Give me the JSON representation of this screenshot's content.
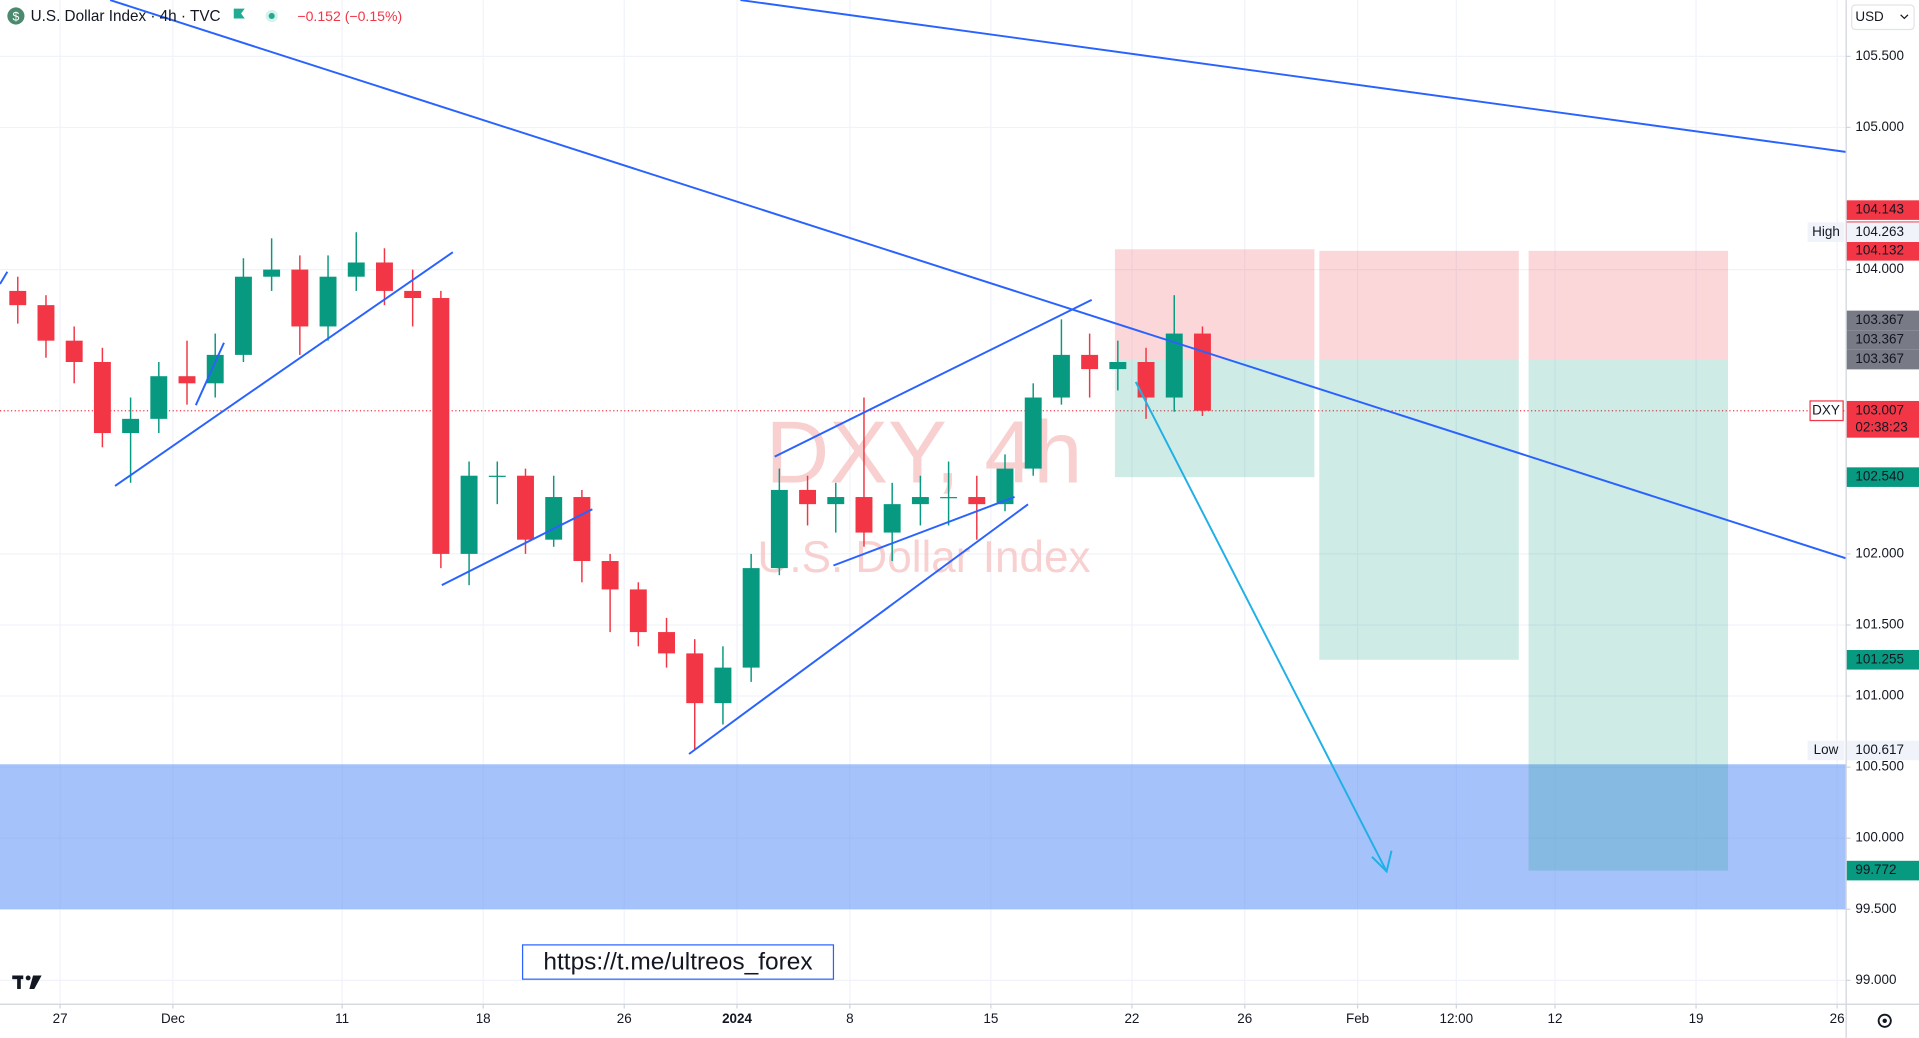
{
  "header": {
    "symbol": "U.S. Dollar Index · 4h · TVC",
    "change": "−0.152 (−0.15%)"
  },
  "currency": "USD",
  "watermark": {
    "ticker": "DXY, 4h",
    "name": "U.S. Dollar Index"
  },
  "link": "https://t.me/ultreos_forex",
  "chart_data": {
    "type": "candlestick",
    "x": [
      -1.5,
      -0.5,
      0.5,
      1.5,
      2.5,
      3.5,
      4.5,
      5.5,
      6.5,
      7.5,
      8.5,
      9.5,
      10.5,
      11.5,
      12.5,
      13.5,
      14.5,
      15.5,
      16.5,
      17.5,
      18.5,
      19.5,
      20.5,
      21.5,
      22.5,
      23.5,
      24.5,
      25.5,
      26.5,
      27.5,
      28.5,
      29.5,
      30.5,
      31.5,
      32.5,
      33.5,
      34.5,
      35.5,
      36.5,
      37.5,
      38.5,
      39.5,
      40.5
    ],
    "open": [
      103.85,
      103.75,
      103.5,
      103.35,
      102.85,
      102.95,
      103.25,
      103.2,
      103.4,
      103.95,
      104.0,
      103.6,
      103.95,
      104.05,
      103.85,
      103.8,
      102.0,
      102.55,
      102.55,
      102.1,
      102.4,
      101.95,
      101.75,
      101.45,
      101.3,
      100.95,
      101.2,
      101.9,
      102.45,
      102.35,
      102.4,
      102.15,
      102.35,
      102.4,
      102.4,
      102.35,
      102.6,
      103.1,
      103.4,
      103.3,
      103.35,
      103.1,
      103.55
    ],
    "high": [
      103.95,
      103.82,
      103.6,
      103.45,
      103.1,
      103.35,
      103.5,
      103.55,
      104.08,
      104.22,
      104.1,
      104.1,
      104.263,
      104.15,
      104.0,
      103.85,
      102.65,
      102.65,
      102.6,
      102.55,
      102.45,
      102.0,
      101.8,
      101.55,
      101.4,
      101.35,
      102.0,
      102.6,
      102.55,
      102.5,
      103.1,
      102.5,
      102.55,
      102.65,
      102.55,
      102.7,
      103.2,
      103.65,
      103.55,
      103.5,
      103.45,
      103.82,
      103.6
    ],
    "low": [
      103.62,
      103.38,
      103.2,
      102.75,
      102.5,
      102.85,
      103.05,
      103.1,
      103.35,
      103.85,
      103.4,
      103.5,
      103.85,
      103.75,
      103.6,
      101.9,
      101.78,
      102.35,
      102.0,
      102.05,
      101.8,
      101.45,
      101.35,
      101.2,
      100.617,
      100.8,
      101.1,
      101.85,
      102.2,
      102.15,
      102.05,
      101.95,
      102.2,
      102.2,
      102.1,
      102.3,
      102.55,
      103.05,
      103.1,
      103.15,
      102.95,
      103.0,
      102.97
    ],
    "close": [
      103.75,
      103.5,
      103.35,
      102.85,
      102.95,
      103.25,
      103.2,
      103.4,
      103.95,
      104.0,
      103.6,
      103.95,
      104.05,
      103.85,
      103.8,
      102.0,
      102.55,
      102.55,
      102.1,
      102.4,
      101.95,
      101.75,
      101.45,
      101.3,
      100.95,
      101.2,
      101.9,
      102.45,
      102.35,
      102.4,
      102.15,
      102.35,
      102.4,
      102.4,
      102.35,
      102.6,
      103.1,
      103.4,
      103.3,
      103.35,
      103.1,
      103.55,
      103.007
    ],
    "up_color": "#089981",
    "down_color": "#f23645",
    "xlim": [
      -2.13,
      63.3
    ],
    "xticks": [
      {
        "value": 0,
        "label": "27"
      },
      {
        "value": 4,
        "label": "Dec"
      },
      {
        "value": 10,
        "label": "11"
      },
      {
        "value": 15,
        "label": "18"
      },
      {
        "value": 20,
        "label": "26"
      },
      {
        "value": 24,
        "label": "2024"
      },
      {
        "value": 28,
        "label": "8"
      },
      {
        "value": 33,
        "label": "15"
      },
      {
        "value": 38,
        "label": "22"
      },
      {
        "value": 42,
        "label": "26"
      },
      {
        "value": 46,
        "label": "Feb"
      },
      {
        "value": 49.5,
        "label": "12:00"
      },
      {
        "value": 53,
        "label": "12"
      },
      {
        "value": 58,
        "label": "19"
      },
      {
        "value": 63,
        "label": "26"
      }
    ],
    "ylim": [
      98.836,
      105.896
    ],
    "yticks": [
      {
        "value": 105.5,
        "label": "105.500"
      },
      {
        "value": 105,
        "label": "105.000"
      },
      {
        "value": 104,
        "label": "104.000"
      },
      {
        "value": 102,
        "label": "102.000"
      },
      {
        "value": 101.5,
        "label": "101.500"
      },
      {
        "value": 101,
        "label": "101.000"
      },
      {
        "value": 100.5,
        "label": "100.500"
      },
      {
        "value": 100,
        "label": "100.000"
      },
      {
        "value": 99.5,
        "label": "99.500"
      },
      {
        "value": 99,
        "label": "99.000"
      }
    ],
    "grid": true,
    "high_marker": {
      "label": "High",
      "value": 104.263
    },
    "low_marker": {
      "label": "Low",
      "value": 100.617
    },
    "last_price": {
      "label": "DXY",
      "value": 103.007,
      "countdown": "02:38:23",
      "color": "#f23645"
    },
    "positions": [
      {
        "stop": 104.143,
        "entry": 103.367,
        "target": {
          "value": 102.54,
          "label": "102.540"
        }
      },
      {
        "stop": 104.132,
        "entry": 103.367,
        "target": 101.255
      },
      {
        "stop": 104.132,
        "entry": 103.367,
        "target": 99.772
      }
    ],
    "zone": [
      99.5,
      100.52
    ],
    "zone_color": "#5b8ff5"
  }
}
